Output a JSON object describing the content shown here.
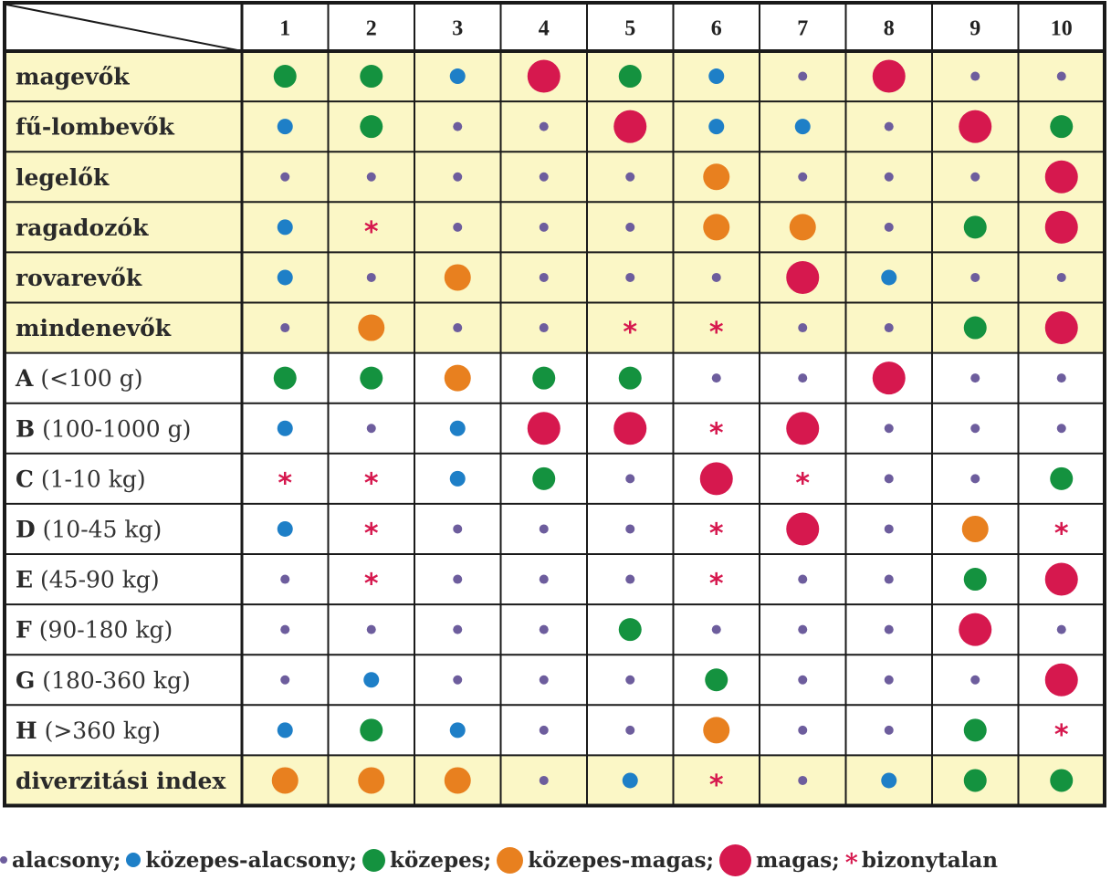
{
  "chart_data": {
    "type": "table",
    "columns": [
      "1",
      "2",
      "3",
      "4",
      "5",
      "6",
      "7",
      "8",
      "9",
      "10"
    ],
    "rows": [
      {
        "bold": "magevők",
        "extra": "",
        "group": "feeding",
        "values": [
          "kozepes",
          "kozepes",
          "kozepes-alacsony",
          "magas",
          "kozepes",
          "kozepes-alacsony",
          "alacsony",
          "magas",
          "alacsony",
          "alacsony"
        ]
      },
      {
        "bold": "fű-lombevők",
        "extra": "",
        "group": "feeding",
        "values": [
          "kozepes-alacsony",
          "kozepes",
          "alacsony",
          "alacsony",
          "magas",
          "kozepes-alacsony",
          "kozepes-alacsony",
          "alacsony",
          "magas",
          "kozepes"
        ]
      },
      {
        "bold": "legelők",
        "extra": "",
        "group": "feeding",
        "values": [
          "alacsony",
          "alacsony",
          "alacsony",
          "alacsony",
          "alacsony",
          "kozepes-magas",
          "alacsony",
          "alacsony",
          "alacsony",
          "magas"
        ]
      },
      {
        "bold": "ragadozók",
        "extra": "",
        "group": "feeding",
        "values": [
          "kozepes-alacsony",
          "bizonytalan",
          "alacsony",
          "alacsony",
          "alacsony",
          "kozepes-magas",
          "kozepes-magas",
          "alacsony",
          "kozepes",
          "magas"
        ]
      },
      {
        "bold": "rovarevők",
        "extra": "",
        "group": "feeding",
        "values": [
          "kozepes-alacsony",
          "alacsony",
          "kozepes-magas",
          "alacsony",
          "alacsony",
          "alacsony",
          "magas",
          "kozepes-alacsony",
          "alacsony",
          "alacsony"
        ]
      },
      {
        "bold": "mindenevők",
        "extra": "",
        "group": "feeding",
        "values": [
          "alacsony",
          "kozepes-magas",
          "alacsony",
          "alacsony",
          "bizonytalan",
          "bizonytalan",
          "alacsony",
          "alacsony",
          "kozepes",
          "magas"
        ]
      },
      {
        "bold": "A",
        "extra": " (<100 g)",
        "group": "size",
        "values": [
          "kozepes",
          "kozepes",
          "kozepes-magas",
          "kozepes",
          "kozepes",
          "alacsony",
          "alacsony",
          "magas",
          "alacsony",
          "alacsony"
        ]
      },
      {
        "bold": "B",
        "extra": " (100-1000 g)",
        "group": "size",
        "values": [
          "kozepes-alacsony",
          "alacsony",
          "kozepes-alacsony",
          "magas",
          "magas",
          "bizonytalan",
          "magas",
          "alacsony",
          "alacsony",
          "alacsony"
        ]
      },
      {
        "bold": "C",
        "extra": " (1-10 kg)",
        "group": "size",
        "values": [
          "bizonytalan",
          "bizonytalan",
          "kozepes-alacsony",
          "kozepes",
          "alacsony",
          "magas",
          "bizonytalan",
          "alacsony",
          "alacsony",
          "kozepes"
        ]
      },
      {
        "bold": "D",
        "extra": " (10-45 kg)",
        "group": "size",
        "values": [
          "kozepes-alacsony",
          "bizonytalan",
          "alacsony",
          "alacsony",
          "alacsony",
          "bizonytalan",
          "magas",
          "alacsony",
          "kozepes-magas",
          "bizonytalan"
        ]
      },
      {
        "bold": "E",
        "extra": " (45-90 kg)",
        "group": "size",
        "values": [
          "alacsony",
          "bizonytalan",
          "alacsony",
          "alacsony",
          "alacsony",
          "bizonytalan",
          "alacsony",
          "alacsony",
          "kozepes",
          "magas"
        ]
      },
      {
        "bold": "F",
        "extra": " (90-180 kg)",
        "group": "size",
        "values": [
          "alacsony",
          "alacsony",
          "alacsony",
          "alacsony",
          "kozepes",
          "alacsony",
          "alacsony",
          "alacsony",
          "magas",
          "alacsony"
        ]
      },
      {
        "bold": "G",
        "extra": " (180-360 kg)",
        "group": "size",
        "values": [
          "alacsony",
          "kozepes-alacsony",
          "alacsony",
          "alacsony",
          "alacsony",
          "kozepes",
          "alacsony",
          "alacsony",
          "alacsony",
          "magas"
        ]
      },
      {
        "bold": "H",
        "extra": " (>360 kg)",
        "group": "size",
        "values": [
          "kozepes-alacsony",
          "kozepes",
          "kozepes-alacsony",
          "alacsony",
          "alacsony",
          "kozepes-magas",
          "alacsony",
          "alacsony",
          "kozepes",
          "bizonytalan"
        ]
      },
      {
        "bold": "diverzitási index",
        "extra": "",
        "group": "diversity",
        "values": [
          "kozepes-magas",
          "kozepes-magas",
          "kozepes-magas",
          "alacsony",
          "kozepes-alacsony",
          "bizonytalan",
          "alacsony",
          "kozepes-alacsony",
          "kozepes",
          "kozepes"
        ]
      }
    ],
    "legend": [
      {
        "key": "alacsony",
        "label": "alacsony;"
      },
      {
        "key": "kozepes-alacsony",
        "label": "közepes-alacsony;"
      },
      {
        "key": "kozepes",
        "label": "közepes;"
      },
      {
        "key": "kozepes-magas",
        "label": "közepes-magas;"
      },
      {
        "key": "magas",
        "label": "magas;"
      },
      {
        "key": "bizonytalan",
        "label": "bizonytalan"
      }
    ],
    "colors": {
      "alacsony": "#6d5d9d",
      "kozepes-alacsony": "#1e7fc7",
      "kozepes": "#14923f",
      "kozepes-magas": "#e8801f",
      "magas": "#d6184e",
      "bizonytalan": "#d6184e",
      "highlight_bg": "#fbf7c6",
      "plain_bg": "#ffffff"
    }
  }
}
